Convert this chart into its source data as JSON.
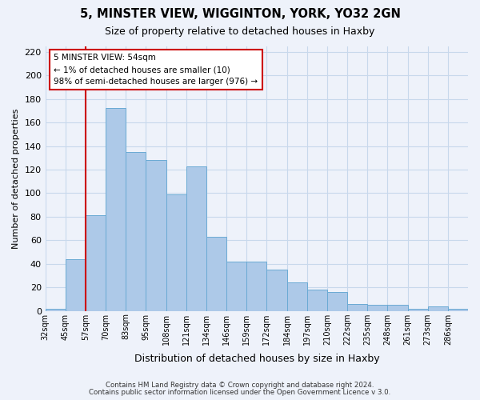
{
  "title": "5, MINSTER VIEW, WIGGINTON, YORK, YO32 2GN",
  "subtitle": "Size of property relative to detached houses in Haxby",
  "xlabel": "Distribution of detached houses by size in Haxby",
  "ylabel": "Number of detached properties",
  "bin_labels": [
    "32sqm",
    "45sqm",
    "57sqm",
    "70sqm",
    "83sqm",
    "95sqm",
    "108sqm",
    "121sqm",
    "134sqm",
    "146sqm",
    "159sqm",
    "172sqm",
    "184sqm",
    "197sqm",
    "210sqm",
    "222sqm",
    "235sqm",
    "248sqm",
    "261sqm",
    "273sqm",
    "286sqm"
  ],
  "bar_heights": [
    2,
    44,
    81,
    172,
    135,
    128,
    99,
    123,
    63,
    42,
    42,
    35,
    24,
    18,
    16,
    6,
    5,
    5,
    2,
    4,
    2
  ],
  "bar_color": "#adc9e8",
  "bar_edge_color": "#6aaad4",
  "grid_color": "#c8d8ec",
  "background_color": "#eef2fa",
  "vline_x_index": 2,
  "vline_color": "#cc0000",
  "annotation_line1": "5 MINSTER VIEW: 54sqm",
  "annotation_line2": "← 1% of detached houses are smaller (10)",
  "annotation_line3": "98% of semi-detached houses are larger (976) →",
  "annotation_box_color": "#ffffff",
  "annotation_box_edge_color": "#cc0000",
  "ylim": [
    0,
    225
  ],
  "yticks": [
    0,
    20,
    40,
    60,
    80,
    100,
    120,
    140,
    160,
    180,
    200,
    220
  ],
  "footer1": "Contains HM Land Registry data © Crown copyright and database right 2024.",
  "footer2": "Contains public sector information licensed under the Open Government Licence v 3.0."
}
